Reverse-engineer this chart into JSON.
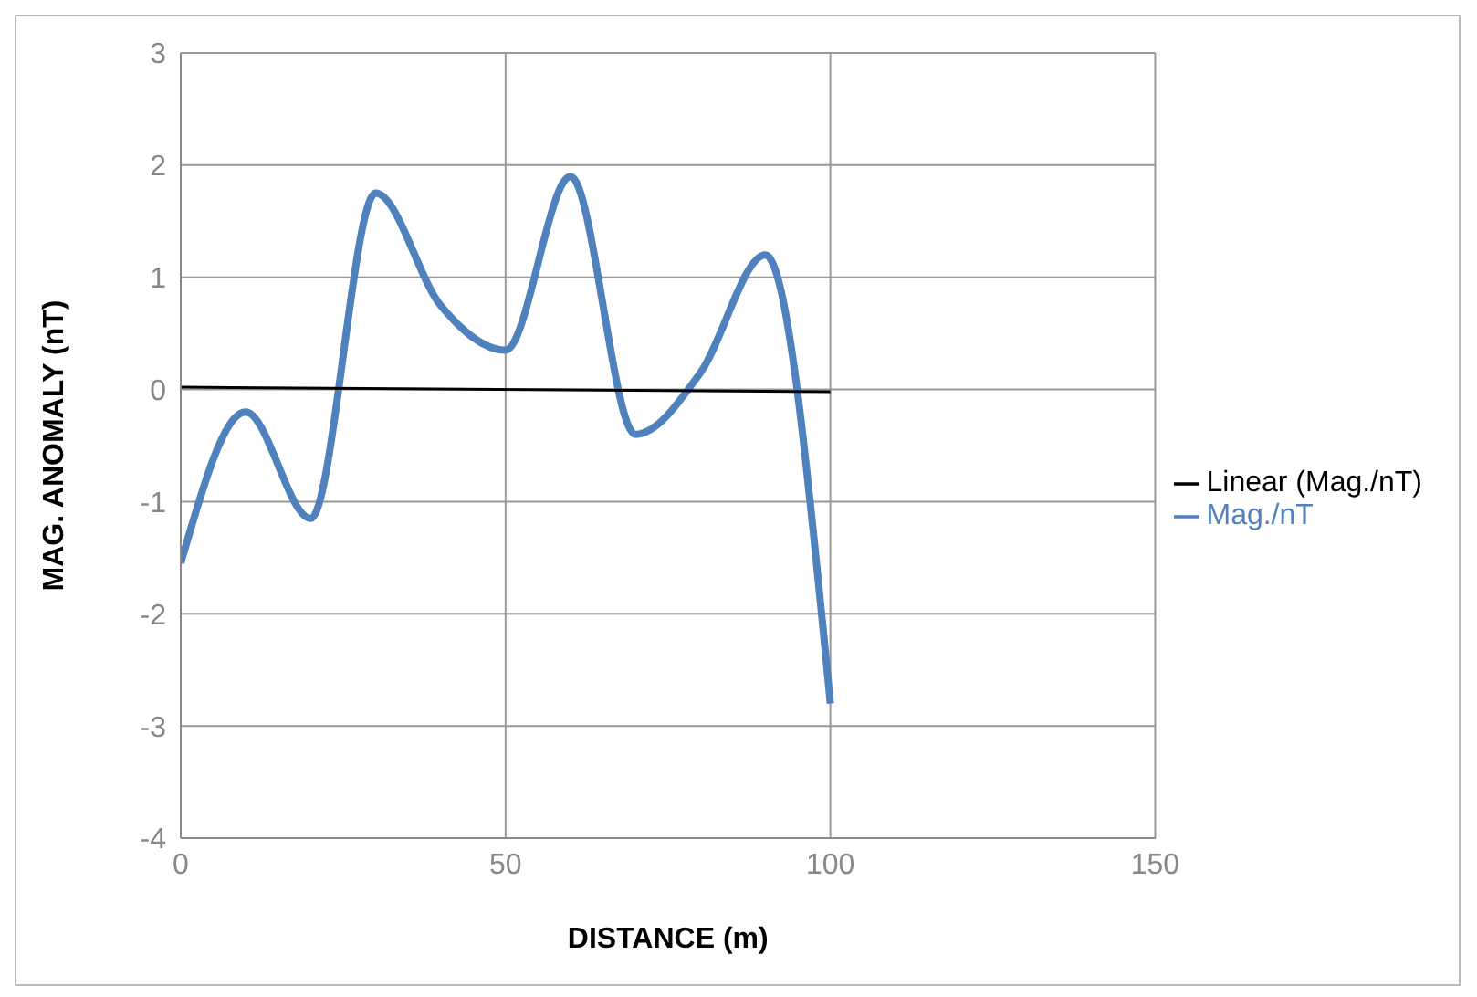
{
  "chart_data": {
    "type": "line",
    "xlabel": "DISTANCE (m)",
    "ylabel": "MAG. ANOMALY (nT)",
    "x": [
      0,
      10,
      20,
      30,
      40,
      50,
      60,
      70,
      80,
      90,
      100
    ],
    "series": [
      {
        "name": "Mag./nT",
        "color": "#4f81bd",
        "values": [
          -1.55,
          -0.2,
          -1.15,
          1.75,
          0.75,
          0.35,
          1.9,
          -0.4,
          0.15,
          1.2,
          -2.8
        ]
      },
      {
        "name": "Linear (Mag./nT)",
        "color": "#000000",
        "x": [
          0,
          100
        ],
        "values": [
          0.02,
          -0.02
        ]
      }
    ],
    "xlim": [
      0,
      150
    ],
    "xticks": [
      0,
      50,
      100,
      150
    ],
    "ylim": [
      -4,
      3
    ],
    "yticks": [
      -4,
      -3,
      -2,
      -1,
      0,
      1,
      2,
      3
    ],
    "grid": true,
    "legend": "right",
    "marker": "none",
    "line_style": "solid"
  }
}
